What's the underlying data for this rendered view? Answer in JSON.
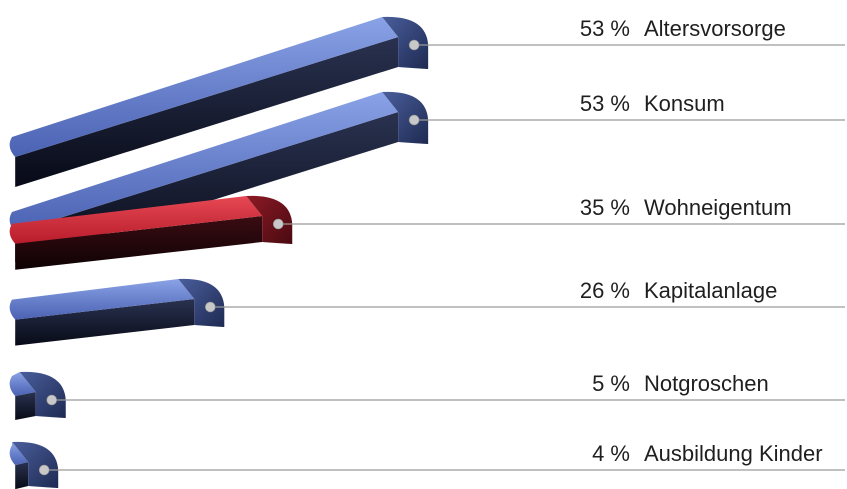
{
  "chart_data": {
    "type": "bar",
    "orientation": "horizontal",
    "style": "3d",
    "unit": "%",
    "categories": [
      "Altersvorsorge",
      "Konsum",
      "Wohneigentum",
      "Kapitalanlage",
      "Notgroschen",
      "Ausbildung Kinder"
    ],
    "values": [
      53,
      53,
      35,
      26,
      5,
      4
    ],
    "value_labels": [
      "53 %",
      "53 %",
      "35 %",
      "26 %",
      "5 %",
      "4 %"
    ],
    "highlight_index": 2,
    "colors": {
      "default_bar": "#5a72c0",
      "highlight_bar": "#c42a36",
      "leader_line": "#9a9a9a",
      "marker": "#c8c8c8"
    },
    "title": "",
    "xlabel": "",
    "ylabel": "",
    "grid": false,
    "legend": "none"
  }
}
